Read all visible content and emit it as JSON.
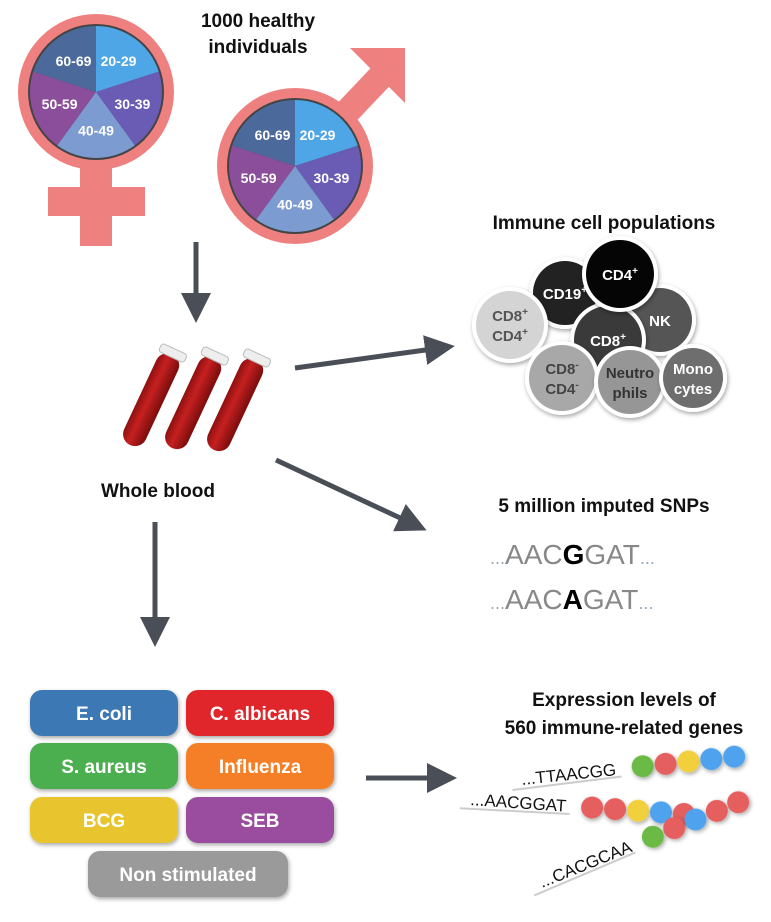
{
  "title": [
    "1000 healthy",
    "individuals"
  ],
  "age_groups": [
    "20-29",
    "30-39",
    "40-49",
    "50-59",
    "60-69"
  ],
  "age_colors": [
    "#4fa6e6",
    "#6a5bb5",
    "#7b9bd1",
    "#8b4e9a",
    "#4b6a9b"
  ],
  "symbol_color": "#ee8080",
  "blood_label": "Whole blood",
  "immune": {
    "title": "Immune cell populations",
    "cells": [
      {
        "label": [
          "CD19",
          ""
        ],
        "sup": [
          "+",
          ""
        ],
        "fill": "#222222",
        "text": "#ffffff"
      },
      {
        "label": [
          "NK",
          ""
        ],
        "sup": [
          "",
          ""
        ],
        "fill": "#555555",
        "text": "#ffffff"
      },
      {
        "label": [
          "CD8",
          ""
        ],
        "sup": [
          "+",
          ""
        ],
        "fill": "#3a3a3a",
        "text": "#ffffff"
      },
      {
        "label": [
          "CD4",
          ""
        ],
        "sup": [
          "+",
          ""
        ],
        "fill": "#050505",
        "text": "#ffffff"
      },
      {
        "label": [
          "CD8",
          "CD4"
        ],
        "sup": [
          "+",
          "+"
        ],
        "fill": "#d4d4d4",
        "text": "#555555"
      },
      {
        "label": [
          "CD8",
          "CD4"
        ],
        "sup": [
          "-",
          "-"
        ],
        "fill": "#a8a8a8",
        "text": "#444444"
      },
      {
        "label": [
          "Neutro",
          "phils"
        ],
        "sup": [
          "",
          ""
        ],
        "fill": "#969696",
        "text": "#333333"
      },
      {
        "label": [
          "Mono",
          "cytes"
        ],
        "sup": [
          "",
          ""
        ],
        "fill": "#6e6e6e",
        "text": "#ffffff"
      }
    ]
  },
  "snps": {
    "title": "5 million imputed SNPs",
    "rows": [
      {
        "prefix": "AAC",
        "allele": "G",
        "suffix": "GAT"
      },
      {
        "prefix": "AAC",
        "allele": "A",
        "suffix": "GAT"
      }
    ],
    "ellipsis": "..."
  },
  "stimuli": [
    {
      "label": "E. coli",
      "color": "#3a78b4"
    },
    {
      "label": "C. albicans",
      "color": "#e0282c"
    },
    {
      "label": "S. aureus",
      "color": "#4bae4f"
    },
    {
      "label": "Influenza",
      "color": "#f47f26"
    },
    {
      "label": "BCG",
      "color": "#e8c52d"
    },
    {
      "label": "SEB",
      "color": "#9a4e9e"
    },
    {
      "label": "Non stimulated",
      "color": "#9a9a9a"
    }
  ],
  "expression": {
    "title": [
      "Expression levels of",
      "560 immune-related genes"
    ],
    "rows": [
      {
        "seq": "...TTAACGG",
        "beads": [
          "green",
          "red",
          "yellow",
          "blue",
          "blue"
        ]
      },
      {
        "seq": "...AACGGAT",
        "beads": [
          "red",
          "red",
          "yellow",
          "blue",
          "red"
        ]
      },
      {
        "seq": "...CACGCAA",
        "beads": [
          "green",
          "red",
          "blue",
          "red",
          "red"
        ]
      }
    ],
    "bead_colors": {
      "green": "#6aba45",
      "red": "#e65e5e",
      "yellow": "#f2cf3c",
      "blue": "#4fa3ee"
    }
  },
  "arrow_color": "#4a4f57"
}
